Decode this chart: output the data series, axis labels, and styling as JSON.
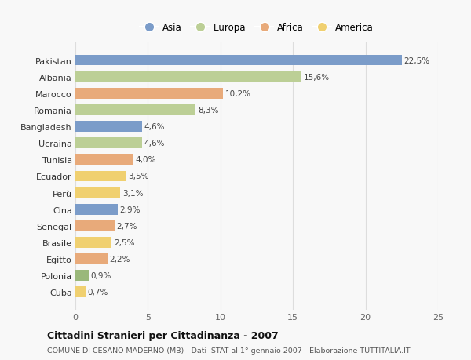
{
  "countries": [
    "Pakistan",
    "Albania",
    "Marocco",
    "Romania",
    "Bangladesh",
    "Ucraina",
    "Tunisia",
    "Ecuador",
    "Perù",
    "Cina",
    "Senegal",
    "Brasile",
    "Egitto",
    "Polonia",
    "Cuba"
  ],
  "values": [
    22.5,
    15.6,
    10.2,
    8.3,
    4.6,
    4.6,
    4.0,
    3.5,
    3.1,
    2.9,
    2.7,
    2.5,
    2.2,
    0.9,
    0.7
  ],
  "labels": [
    "22,5%",
    "15,6%",
    "10,2%",
    "8,3%",
    "4,6%",
    "4,6%",
    "4,0%",
    "3,5%",
    "3,1%",
    "2,9%",
    "2,7%",
    "2,5%",
    "2,2%",
    "0,9%",
    "0,7%"
  ],
  "colors": [
    "#7b9cc9",
    "#bccf96",
    "#e8aa7a",
    "#bccf96",
    "#7b9cc9",
    "#bccf96",
    "#e8aa7a",
    "#f0d070",
    "#f0d070",
    "#7b9cc9",
    "#e8aa7a",
    "#f0d070",
    "#e8aa7a",
    "#9ab87a",
    "#f0d070"
  ],
  "legend_labels": [
    "Asia",
    "Europa",
    "Africa",
    "America"
  ],
  "legend_colors": [
    "#7b9cc9",
    "#bccf96",
    "#e8aa7a",
    "#f0d070"
  ],
  "title": "Cittadini Stranieri per Cittadinanza - 2007",
  "subtitle": "COMUNE DI CESANO MADERNO (MB) - Dati ISTAT al 1° gennaio 2007 - Elaborazione TUTTITALIA.IT",
  "xlim": [
    0,
    25
  ],
  "xticks": [
    0,
    5,
    10,
    15,
    20,
    25
  ],
  "background_color": "#f8f8f8",
  "grid_color": "#dddddd",
  "bar_height": 0.65
}
